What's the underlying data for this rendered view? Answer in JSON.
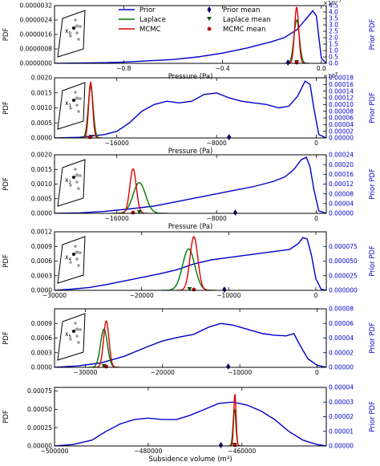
{
  "chart_data": {
    "type": "line",
    "legend": {
      "placement": "top-center",
      "entries": [
        {
          "label": "Prior",
          "color": "#0000cc",
          "kind": "line"
        },
        {
          "label": "Laplace",
          "color": "#007700",
          "kind": "line"
        },
        {
          "label": "MCMC",
          "color": "#dd0000",
          "kind": "line"
        },
        {
          "label": "Prior mean",
          "color": "#00007a",
          "kind": "diamond"
        },
        {
          "label": "Laplace mean",
          "color": "#005500",
          "kind": "triangle"
        },
        {
          "label": "MCMC mean",
          "color": "#bb0000",
          "kind": "circle"
        }
      ]
    },
    "panels": [
      {
        "xlabel": "Pressure (Pa)",
        "ylabel": "PDF",
        "ylabel_right": "Prior PDF",
        "xlim": [
          -1.08,
          0.02
        ],
        "ylim": [
          0,
          3.2e-06
        ],
        "ylim_right": [
          0,
          4.5
        ],
        "xticks": [
          -0.8,
          -0.4,
          0.0
        ],
        "xtick_labels": [
          "−0.8",
          "−0.4",
          "0.0"
        ],
        "yticks": [
          "0.0000000",
          "0.0000008",
          "0.0000016",
          "0.0000024",
          "0.0000032"
        ],
        "yticks_right": [
          "0.0",
          "0.5",
          "1.0",
          "1.5",
          "2.0",
          "2.5",
          "3.0",
          "3.5",
          "4.0",
          "4.5"
        ],
        "multiplier_top": "1e−7",
        "multiplier_bottom": "1e7",
        "inset_label": "x0",
        "prior_curve": [
          [
            -1.08,
            0.0
          ],
          [
            -0.95,
            0.03
          ],
          [
            -0.88,
            0.05
          ],
          [
            -0.8,
            0.1
          ],
          [
            -0.7,
            0.2
          ],
          [
            -0.6,
            0.3
          ],
          [
            -0.5,
            0.5
          ],
          [
            -0.4,
            0.8
          ],
          [
            -0.3,
            1.2
          ],
          [
            -0.2,
            1.7
          ],
          [
            -0.15,
            2.0
          ],
          [
            -0.1,
            2.6
          ],
          [
            -0.06,
            3.5
          ],
          [
            -0.035,
            4.1
          ],
          [
            -0.02,
            3.7
          ],
          [
            -0.01,
            2.0
          ],
          [
            0.0,
            0.4
          ],
          [
            0.02,
            0.0
          ]
        ],
        "laplace": {
          "mean": -0.1,
          "sd": 0.011,
          "peak": 2.4e-06
        },
        "mcmc": {
          "mean": -0.1,
          "sd": 0.0085,
          "peak": 3.1e-06
        },
        "prior_mean": -0.135,
        "laplace_mean": -0.1,
        "mcmc_mean": -0.1
      },
      {
        "xlabel": "Pressure (Pa)",
        "ylabel": "PDF",
        "ylabel_right": "Prior PDF",
        "xlim": [
          -21000,
          800
        ],
        "ylim": [
          0,
          0.002
        ],
        "ylim_right": [
          0,
          0.00018
        ],
        "xticks": [
          -16000,
          -8000,
          0
        ],
        "xtick_labels": [
          "−16000",
          "−8000",
          "0"
        ],
        "yticks": [
          "0.0000",
          "0.0005",
          "0.0010",
          "0.0015",
          "0.0020"
        ],
        "yticks_right": [
          "0.00000",
          "0.00002",
          "0.00004",
          "0.00006",
          "0.00008",
          "0.00010",
          "0.00012",
          "0.00014",
          "0.00016",
          "0.00018"
        ],
        "inset_label": "x1",
        "prior_curve": [
          [
            -21000,
            0.0
          ],
          [
            -19000,
            2e-06
          ],
          [
            -17000,
            1e-05
          ],
          [
            -16000,
            2e-05
          ],
          [
            -15000,
            4.5e-05
          ],
          [
            -14000,
            8e-05
          ],
          [
            -13000,
            0.0001
          ],
          [
            -12000,
            0.00011
          ],
          [
            -11000,
            0.000105
          ],
          [
            -10000,
            0.00011
          ],
          [
            -9000,
            0.00013
          ],
          [
            -8000,
            0.000135
          ],
          [
            -7000,
            0.00012
          ],
          [
            -6000,
            0.00011
          ],
          [
            -5000,
            0.000105
          ],
          [
            -4000,
            0.0001
          ],
          [
            -3000,
            9e-05
          ],
          [
            -2200,
            9.5e-05
          ],
          [
            -1500,
            0.000125
          ],
          [
            -900,
            0.00017
          ],
          [
            -500,
            0.00016
          ],
          [
            -200,
            9e-05
          ],
          [
            200,
            1e-05
          ],
          [
            800,
            0.0
          ]
        ],
        "laplace": {
          "mean": -18100,
          "sd": 200,
          "peak": 0.0017
        },
        "mcmc": {
          "mean": -18100,
          "sd": 160,
          "peak": 0.00185
        },
        "prior_mean": -7000,
        "laplace_mean": -18050,
        "mcmc_mean": -18150
      },
      {
        "xlabel": "Pressure (Pa)",
        "ylabel": "PDF",
        "ylabel_right": "Prior PDF",
        "xlim": [
          -21000,
          800
        ],
        "ylim": [
          0,
          0.002
        ],
        "ylim_right": [
          0,
          0.00024
        ],
        "xticks": [
          -16000,
          -8000,
          0
        ],
        "xtick_labels": [
          "−16000",
          "−8000",
          "0"
        ],
        "yticks": [
          "0.0000",
          "0.0005",
          "0.0010",
          "0.0015",
          "0.0020"
        ],
        "yticks_right": [
          "0.00000",
          "0.00004",
          "0.00008",
          "0.00012",
          "0.00016",
          "0.00020",
          "0.00024"
        ],
        "inset_label": "x2",
        "prior_curve": [
          [
            -21000,
            0.0
          ],
          [
            -19000,
            2e-06
          ],
          [
            -17000,
            8e-06
          ],
          [
            -15000,
            1.8e-05
          ],
          [
            -13000,
            3e-05
          ],
          [
            -11000,
            5e-05
          ],
          [
            -9000,
            7e-05
          ],
          [
            -7000,
            9e-05
          ],
          [
            -5000,
            0.00011
          ],
          [
            -3500,
            0.00013
          ],
          [
            -2500,
            0.00015
          ],
          [
            -1800,
            0.00018
          ],
          [
            -1200,
            0.00022
          ],
          [
            -800,
            0.00023
          ],
          [
            -500,
            0.00019
          ],
          [
            -200,
            0.0001
          ],
          [
            200,
            1e-05
          ],
          [
            800,
            0.0
          ]
        ],
        "laplace": {
          "mean": -14200,
          "sd": 500,
          "peak": 0.00105
        },
        "mcmc": {
          "mean": -14700,
          "sd": 260,
          "peak": 0.00152
        },
        "prior_mean": -6500,
        "laplace_mean": -14200,
        "mcmc_mean": -14700
      },
      {
        "xlabel": "",
        "ylabel": "PDF",
        "ylabel_right": "Prior PDF",
        "xlim": [
          -30000,
          1200
        ],
        "ylim": [
          0,
          0.0012
        ],
        "ylim_right": [
          0,
          0.0001
        ],
        "xticks": [
          -30000,
          -20000,
          -10000,
          0
        ],
        "xtick_labels": [
          "−30000",
          "−20000",
          "−10000",
          "0"
        ],
        "yticks": [
          "0.0000",
          "0.0003",
          "0.0006",
          "0.0009",
          "0.0012"
        ],
        "yticks_right": [
          "0.000000",
          "0.000025",
          "0.000050",
          "0.000075"
        ],
        "inset_label": "x4",
        "prior_curve": [
          [
            -30000,
            0.0
          ],
          [
            -28000,
            2e-06
          ],
          [
            -26000,
            5e-06
          ],
          [
            -24000,
            1e-05
          ],
          [
            -22000,
            1.6e-05
          ],
          [
            -20000,
            2.2e-05
          ],
          [
            -18000,
            2.8e-05
          ],
          [
            -16000,
            3.5e-05
          ],
          [
            -14000,
            4.5e-05
          ],
          [
            -12000,
            5.2e-05
          ],
          [
            -10000,
            5.6e-05
          ],
          [
            -8000,
            6e-05
          ],
          [
            -6000,
            6.4e-05
          ],
          [
            -4000,
            6.8e-05
          ],
          [
            -3000,
            7e-05
          ],
          [
            -2000,
            8e-05
          ],
          [
            -1500,
            9e-05
          ],
          [
            -1000,
            8.8e-05
          ],
          [
            -500,
            6e-05
          ],
          [
            0,
            2e-05
          ],
          [
            600,
            2e-06
          ],
          [
            1200,
            0.0
          ]
        ],
        "laplace": {
          "mean": -14600,
          "sd": 700,
          "peak": 0.00085
        },
        "mcmc": {
          "mean": -14000,
          "sd": 450,
          "peak": 0.0011
        },
        "prior_mean": -10500,
        "laplace_mean": -14500,
        "mcmc_mean": -14000
      },
      {
        "xlabel": "",
        "ylabel": "PDF",
        "ylabel_right": "Prior PDF",
        "xlim": [
          -34000,
          1200
        ],
        "ylim": [
          0,
          0.0012
        ],
        "ylim_right": [
          0,
          8e-05
        ],
        "xticks": [
          -30000,
          -20000,
          -10000,
          0
        ],
        "xtick_labels": [
          "−30000",
          "−20000",
          "−10000",
          "0"
        ],
        "yticks": [
          "0.0000",
          "0.0003",
          "0.0006",
          "0.0009"
        ],
        "yticks_right": [
          "0.00000",
          "0.00002",
          "0.00004",
          "0.00006",
          "0.00008"
        ],
        "inset_label": "x5",
        "prior_curve": [
          [
            -34000,
            0.0
          ],
          [
            -31000,
            2e-06
          ],
          [
            -28000,
            6e-06
          ],
          [
            -25000,
            1.5e-05
          ],
          [
            -22000,
            2.8e-05
          ],
          [
            -20000,
            3.6e-05
          ],
          [
            -18000,
            4.1e-05
          ],
          [
            -16000,
            4.5e-05
          ],
          [
            -14000,
            5.5e-05
          ],
          [
            -12500,
            6e-05
          ],
          [
            -11000,
            5.8e-05
          ],
          [
            -9000,
            5.2e-05
          ],
          [
            -7000,
            4.6e-05
          ],
          [
            -5500,
            4.4e-05
          ],
          [
            -4000,
            4.3e-05
          ],
          [
            -3000,
            4.6e-05
          ],
          [
            -2200,
            3e-05
          ],
          [
            -1200,
            1.2e-05
          ],
          [
            0,
            3e-06
          ],
          [
            1200,
            0.0
          ]
        ],
        "laplace": {
          "mean": -27600,
          "sd": 450,
          "peak": 0.00078
        },
        "mcmc": {
          "mean": -27300,
          "sd": 350,
          "peak": 0.00095
        },
        "prior_mean": -11500,
        "laplace_mean": -27600,
        "mcmc_mean": -27300
      },
      {
        "xlabel": "Subsidence volume (m³)",
        "ylabel": "PDF",
        "ylabel_right": "Prior PDF",
        "xlim": [
          -500000,
          -442000
        ],
        "ylim": [
          0,
          0.0008
        ],
        "ylim_right": [
          0,
          4e-05
        ],
        "xticks": [
          -500000,
          -480000,
          -460000,
          -440000
        ],
        "xtick_labels": [
          "−500000",
          "−480000",
          "−460000",
          "−440000"
        ],
        "yticks": [
          "0.00000",
          "0.00025",
          "0.00050",
          "0.00075"
        ],
        "yticks_right": [
          "0.00000",
          "0.00001",
          "0.00002",
          "0.00003",
          "0.00004"
        ],
        "prior_curve": [
          [
            -500000,
            0.0
          ],
          [
            -496000,
            1e-06
          ],
          [
            -492000,
            4e-06
          ],
          [
            -489000,
            1e-05
          ],
          [
            -486000,
            1.5e-05
          ],
          [
            -483000,
            1.8e-05
          ],
          [
            -480000,
            1.9e-05
          ],
          [
            -477000,
            1.8e-05
          ],
          [
            -474000,
            1.8e-05
          ],
          [
            -471000,
            2.1e-05
          ],
          [
            -468000,
            2.5e-05
          ],
          [
            -465000,
            2.9e-05
          ],
          [
            -462000,
            3e-05
          ],
          [
            -459000,
            2.8e-05
          ],
          [
            -456000,
            2.4e-05
          ],
          [
            -453000,
            1.8e-05
          ],
          [
            -450000,
            1e-05
          ],
          [
            -447000,
            4e-06
          ],
          [
            -444000,
            1e-06
          ],
          [
            -442000,
            0.0
          ]
        ],
        "laplace": {
          "mean": -461600,
          "sd": 300,
          "peak": 0.0005
        },
        "mcmc": {
          "mean": -461500,
          "sd": 250,
          "peak": 0.0007
        },
        "prior_mean": -464500,
        "laplace_mean": -461600,
        "mcmc_mean": -461500
      }
    ]
  }
}
